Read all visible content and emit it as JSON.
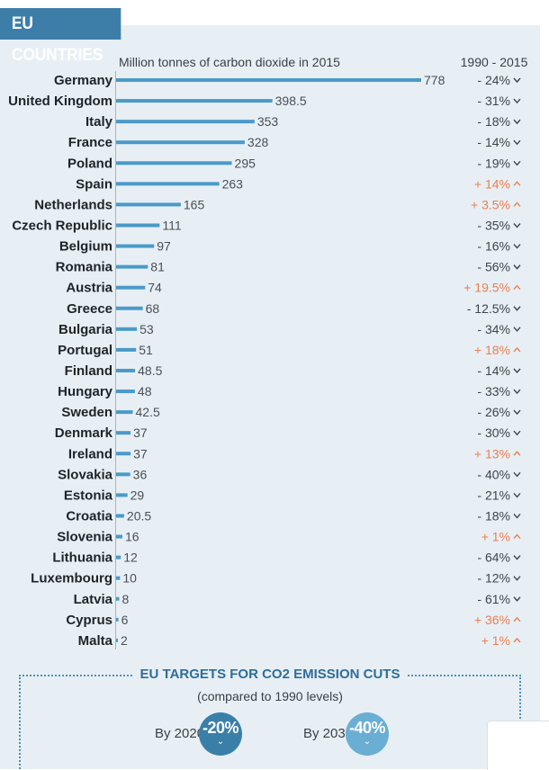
{
  "header": {
    "title": "EU COUNTRIES"
  },
  "colors": {
    "bar": "#4a9ac8",
    "decrease": "#3e4448",
    "increase": "#ec7e4f",
    "panel": "#e7eff5",
    "header": "#3d7ea8",
    "target_2020": "#3a7fa8",
    "target_2030": "#6aaed4"
  },
  "chart_data": {
    "type": "bar",
    "orientation": "horizontal",
    "subtitle": "Million tonnes of carbon dioxide in 2015",
    "change_header": "1990 - 2015",
    "categories": [
      "Germany",
      "United Kingdom",
      "Italy",
      "France",
      "Poland",
      "Spain",
      "Netherlands",
      "Czech Republic",
      "Belgium",
      "Romania",
      "Austria",
      "Greece",
      "Bulgaria",
      "Portugal",
      "Finland",
      "Hungary",
      "Sweden",
      "Denmark",
      "Ireland",
      "Slovakia",
      "Estonia",
      "Croatia",
      "Slovenia",
      "Lithuania",
      "Luxembourg",
      "Latvia",
      "Cyprus",
      "Malta"
    ],
    "values": [
      778,
      398.5,
      353,
      328,
      295,
      263,
      165,
      111,
      97,
      81,
      74,
      68,
      53,
      51,
      48.5,
      48,
      42.5,
      37,
      37,
      36,
      29,
      20.5,
      16,
      12,
      10,
      8,
      6,
      2
    ],
    "value_labels": [
      "778",
      "398.5",
      "353",
      "328",
      "295",
      "263",
      "165",
      "111",
      "97",
      "81",
      "74",
      "68",
      "53",
      "51",
      "48.5",
      "48",
      "42.5",
      "37",
      "37",
      "36",
      "29",
      "20.5",
      "16",
      "12",
      "10",
      "8",
      "6",
      "2"
    ],
    "change_labels": [
      "- 24%",
      "- 31%",
      "- 18%",
      "- 14%",
      "- 19%",
      "+ 14%",
      "+ 3.5%",
      "- 35%",
      "- 16%",
      "- 56%",
      "+ 19.5%",
      "- 12.5%",
      "- 34%",
      "+ 18%",
      "- 14%",
      "- 33%",
      "- 26%",
      "- 30%",
      "+ 13%",
      "- 40%",
      "- 21%",
      "- 18%",
      "+ 1%",
      "- 64%",
      "- 12%",
      "- 61%",
      "+ 36%",
      "+ 1%"
    ],
    "change_direction": [
      "down",
      "down",
      "down",
      "down",
      "down",
      "up",
      "up",
      "down",
      "down",
      "down",
      "up",
      "down",
      "down",
      "up",
      "down",
      "down",
      "down",
      "down",
      "up",
      "down",
      "down",
      "down",
      "up",
      "down",
      "down",
      "down",
      "up",
      "up"
    ],
    "xlim": [
      0,
      778
    ]
  },
  "targets": {
    "title": "EU TARGETS FOR CO2 EMISSION CUTS",
    "subtitle": "(compared to 1990 levels)",
    "items": [
      {
        "label": "By 2020",
        "value": "-20%"
      },
      {
        "label": "By 2030",
        "value": "-40%"
      }
    ]
  }
}
